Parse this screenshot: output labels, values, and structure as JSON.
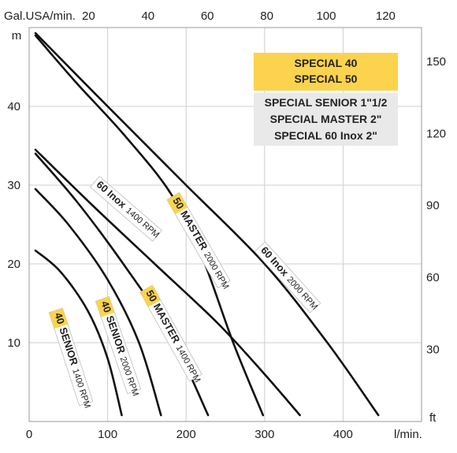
{
  "chart_data": {
    "type": "line",
    "top_axis": {
      "unit": "Gal.USA/min.",
      "ticks": [
        "20",
        "40",
        "60",
        "80",
        "100",
        "120"
      ]
    },
    "bottom_axis": {
      "unit": "l/min.",
      "ticks": [
        "0",
        "100",
        "200",
        "300",
        "400"
      ],
      "range": [
        0,
        500
      ]
    },
    "left_axis": {
      "unit": "m",
      "ticks": [
        "10",
        "20",
        "30",
        "40"
      ],
      "range": [
        0,
        50
      ]
    },
    "right_axis": {
      "unit": "ft",
      "ticks": [
        "30",
        "60",
        "90",
        "120",
        "150"
      ]
    },
    "grid": true,
    "legend": {
      "position": "top-right",
      "highlight_color": "#fcd34d",
      "plain_color": "#e9e9e9",
      "highlighted": [
        "SPECIAL 40",
        "SPECIAL 50"
      ],
      "plain": [
        "SPECIAL SENIOR 1\"1/2",
        "SPECIAL MASTER 2\"",
        "SPECIAL 60 Inox 2\""
      ]
    },
    "series": [
      {
        "name": "40 SENIOR 1400 RPM",
        "tag": "40",
        "model": "SENIOR",
        "rpm": "1400 RPM",
        "highlight": true,
        "points": [
          [
            8,
            21.7
          ],
          [
            40,
            19.0
          ],
          [
            75,
            14.0
          ],
          [
            100,
            8.0
          ],
          [
            118,
            0.8
          ]
        ]
      },
      {
        "name": "40 SENIOR 2000 RPM",
        "tag": "40",
        "model": "SENIOR",
        "rpm": "2000 RPM",
        "highlight": true,
        "points": [
          [
            8,
            29.5
          ],
          [
            50,
            25.0
          ],
          [
            100,
            18.0
          ],
          [
            140,
            10.0
          ],
          [
            168,
            0.8
          ]
        ]
      },
      {
        "name": "50 MASTER 1400 RPM",
        "tag": "50",
        "model": "MASTER",
        "rpm": "1400 RPM",
        "highlight": true,
        "points": [
          [
            8,
            34.0
          ],
          [
            60,
            28.0
          ],
          [
            120,
            20.0
          ],
          [
            180,
            11.0
          ],
          [
            228,
            0.8
          ]
        ]
      },
      {
        "name": "50 MASTER 2000 RPM",
        "tag": "50",
        "model": "MASTER",
        "rpm": "2000 RPM",
        "highlight": true,
        "points": [
          [
            8,
            49.0
          ],
          [
            60,
            43.0
          ],
          [
            120,
            36.5
          ],
          [
            180,
            29.0
          ],
          [
            220,
            21.0
          ],
          [
            260,
            10.0
          ],
          [
            298,
            0.8
          ]
        ]
      },
      {
        "name": "60 Inox 1400 RPM",
        "tag": "",
        "model": "60 Inox",
        "rpm": "1400 RPM",
        "highlight": false,
        "points": [
          [
            8,
            34.5
          ],
          [
            80,
            27.5
          ],
          [
            160,
            20.0
          ],
          [
            240,
            12.5
          ],
          [
            300,
            6.0
          ],
          [
            345,
            0.8
          ]
        ]
      },
      {
        "name": "60 Inox 2000 RPM",
        "tag": "",
        "model": "60 Inox",
        "rpm": "2000 RPM",
        "highlight": false,
        "points": [
          [
            8,
            49.3
          ],
          [
            100,
            40.0
          ],
          [
            200,
            30.0
          ],
          [
            300,
            20.0
          ],
          [
            380,
            10.0
          ],
          [
            445,
            0.8
          ]
        ]
      }
    ]
  }
}
